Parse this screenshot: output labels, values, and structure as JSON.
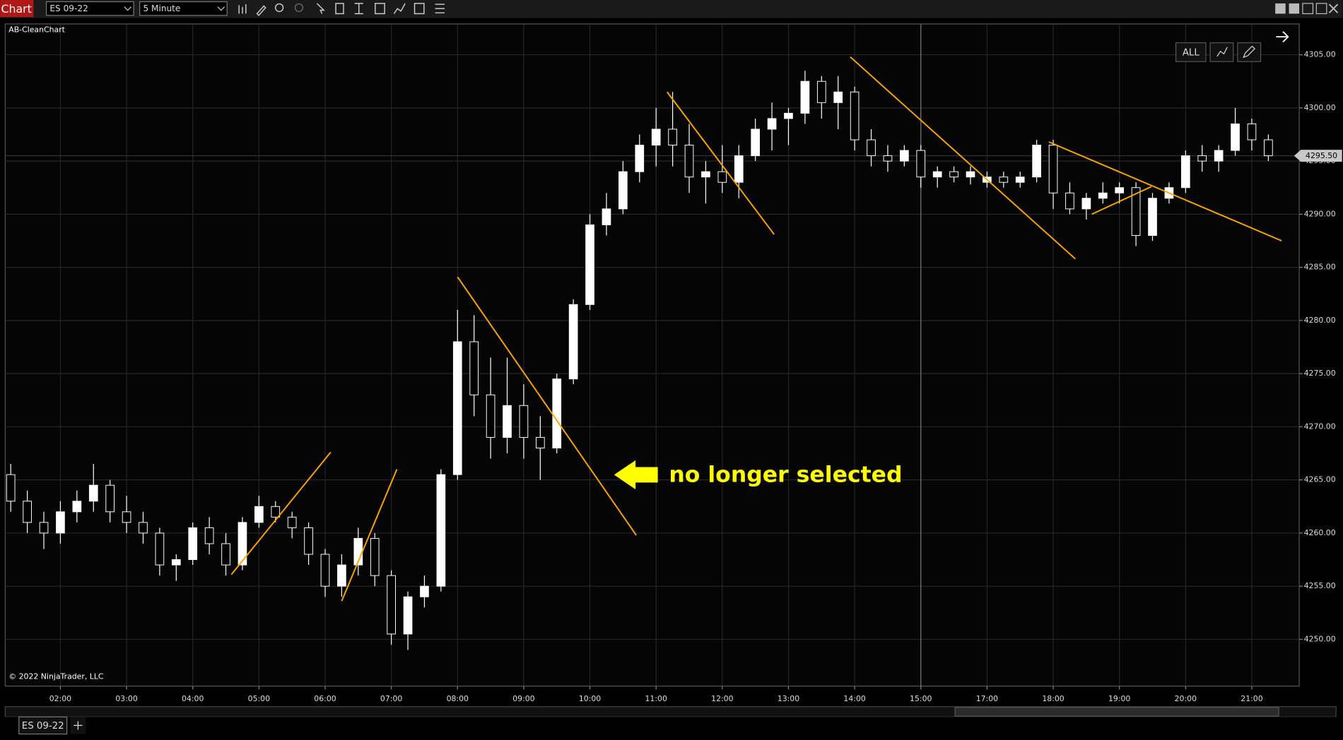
{
  "toolbar": {
    "title": "Chart",
    "instrument": "ES 09-22",
    "interval": "5 Minute"
  },
  "chart_data": {
    "type": "candlestick",
    "title": "AB-CleanChart",
    "copyright": "© 2022 NinjaTrader, LLC",
    "x": [
      "01:15",
      "01:30",
      "01:45",
      "02:00",
      "02:15",
      "02:30",
      "02:45",
      "03:00",
      "03:15",
      "03:30",
      "03:45",
      "04:00",
      "04:15",
      "04:30",
      "04:45",
      "05:00",
      "05:15",
      "05:30",
      "05:45",
      "06:00",
      "06:15",
      "06:30",
      "06:45",
      "07:00",
      "07:15",
      "07:30",
      "07:45",
      "08:00",
      "08:15",
      "08:30",
      "08:45",
      "09:00",
      "09:15",
      "09:30",
      "09:45",
      "10:00",
      "10:15",
      "10:30",
      "10:45",
      "11:00",
      "11:15",
      "11:30",
      "11:45",
      "12:00",
      "12:15",
      "12:30",
      "12:45",
      "13:00",
      "13:15",
      "13:30",
      "13:45",
      "14:00",
      "14:15",
      "14:30",
      "14:45",
      "15:00",
      "15:15",
      "15:30",
      "15:45",
      "17:00",
      "17:15",
      "17:30",
      "17:45",
      "18:00",
      "18:15",
      "18:30",
      "18:45",
      "19:00",
      "19:15",
      "19:30",
      "19:45",
      "20:00",
      "20:15",
      "20:30",
      "20:45",
      "21:00",
      "21:15"
    ],
    "open": [
      4265.5,
      4263,
      4261,
      4260,
      4262,
      4263,
      4264.5,
      4262,
      4261,
      4260,
      4257,
      4257.5,
      4260.5,
      4259,
      4257,
      4261,
      4262.5,
      4261.5,
      4260.5,
      4258,
      4255,
      4257,
      4259.5,
      4256,
      4250.5,
      4254,
      4255,
      4265.5,
      4278,
      4273,
      4269,
      4272,
      4269,
      4268,
      4274.5,
      4281.5,
      4289,
      4290.5,
      4294,
      4296.5,
      4298,
      4296.5,
      4293.5,
      4294,
      4293,
      4295.5,
      4298,
      4299,
      4299.5,
      4302.5,
      4300.5,
      4301.5,
      4297,
      4295.5,
      4295,
      4296,
      4293.5,
      4294,
      4293.5,
      4293,
      4293.5,
      4293,
      4293.5,
      4296.5,
      4292,
      4290.5,
      4291.5,
      4292,
      4292.5,
      4288,
      4291.5,
      4292.5,
      4295.5,
      4295,
      4296,
      4298.5,
      4297
    ],
    "high": [
      4266.5,
      4264,
      4262,
      4263,
      4264,
      4266.5,
      4265,
      4263.5,
      4262,
      4260.5,
      4258,
      4261,
      4261.5,
      4260,
      4261.5,
      4263.5,
      4263,
      4262,
      4261,
      4258.5,
      4258,
      4260.5,
      4260,
      4256.5,
      4254.5,
      4256,
      4266,
      4281,
      4280.5,
      4276.5,
      4276.5,
      4274,
      4271,
      4275,
      4282,
      4290,
      4292,
      4295,
      4297.5,
      4300,
      4301.5,
      4298.5,
      4295,
      4296.5,
      4296.5,
      4299,
      4300.5,
      4300,
      4303.5,
      4303,
      4303,
      4302,
      4298,
      4296.5,
      4296.5,
      4296.5,
      4294.5,
      4294.5,
      4294.5,
      4294,
      4294,
      4294,
      4297,
      4297,
      4293,
      4292,
      4293,
      4293,
      4293,
      4292,
      4293,
      4296,
      4296.5,
      4296.5,
      4300,
      4299,
      4297.5
    ],
    "low": [
      4262,
      4260,
      4258.5,
      4259,
      4261,
      4262,
      4261,
      4260,
      4259,
      4256,
      4255.5,
      4257,
      4258,
      4256,
      4256.5,
      4260.5,
      4261,
      4259.5,
      4257,
      4254,
      4254,
      4256,
      4255,
      4249.5,
      4249,
      4253,
      4254.5,
      4265,
      4271,
      4267,
      4267.5,
      4267,
      4265,
      4267.5,
      4274,
      4281,
      4288,
      4290,
      4293,
      4294.5,
      4294.5,
      4292,
      4291,
      4292,
      4291.5,
      4295,
      4296,
      4296.5,
      4298.5,
      4299,
      4298,
      4296,
      4294.5,
      4294,
      4294.5,
      4292.5,
      4292.5,
      4293,
      4292.8,
      4292.5,
      4292.5,
      4292.5,
      4293,
      4290.5,
      4290,
      4289.5,
      4291,
      4291,
      4287,
      4287.5,
      4291,
      4292,
      4294,
      4294,
      4295.5,
      4296,
      4295
    ],
    "close": [
      4263,
      4261,
      4260,
      4262,
      4263,
      4264.5,
      4262,
      4261,
      4260,
      4257,
      4257.5,
      4260.5,
      4259,
      4257,
      4261,
      4262.5,
      4261.5,
      4260.5,
      4258,
      4255,
      4257,
      4259.5,
      4256,
      4250.5,
      4254,
      4255,
      4265.5,
      4278,
      4273,
      4269,
      4272,
      4269,
      4268,
      4274.5,
      4281.5,
      4289,
      4290.5,
      4294,
      4296.5,
      4298,
      4296.5,
      4293.5,
      4294,
      4293,
      4295.5,
      4298,
      4299,
      4299.5,
      4302.5,
      4300.5,
      4301.5,
      4297,
      4295.5,
      4295,
      4296,
      4293.5,
      4294,
      4293.5,
      4294,
      4293.5,
      4293,
      4293.5,
      4296.5,
      4292,
      4290.5,
      4291.5,
      4292,
      4292.5,
      4288,
      4291.5,
      4292.5,
      4295.5,
      4295,
      4296,
      4298.5,
      4297,
      4295.5
    ],
    "colors": {
      "up": "#ffffff",
      "down": "#000000",
      "wick": "#ffffff"
    },
    "xlim": [
      "01:10",
      "21:43"
    ],
    "xticks": [
      "02:00",
      "03:00",
      "04:00",
      "05:00",
      "06:00",
      "07:00",
      "08:00",
      "09:00",
      "10:00",
      "11:00",
      "12:00",
      "13:00",
      "14:00",
      "15:00",
      "17:00",
      "18:00",
      "19:00",
      "20:00",
      "21:00"
    ],
    "ylim": [
      4245.6,
      4307.9
    ],
    "yticks": [
      {
        "value": 4250,
        "label": "4250.00"
      },
      {
        "value": 4255,
        "label": "4255.00"
      },
      {
        "value": 4260,
        "label": "4260.00"
      },
      {
        "value": 4265,
        "label": "4265.00"
      },
      {
        "value": 4270,
        "label": "4270.00"
      },
      {
        "value": 4275,
        "label": "4275.00"
      },
      {
        "value": 4280,
        "label": "4280.00"
      },
      {
        "value": 4285,
        "label": "4285.00"
      },
      {
        "value": 4290,
        "label": "4290.00"
      },
      {
        "value": 4295,
        "label": "4295.00"
      },
      {
        "value": 4300,
        "label": "4300.00"
      },
      {
        "value": 4305,
        "label": "4305.00"
      }
    ],
    "grid": true,
    "last_price": {
      "value": 4295.5,
      "label": "4295.50"
    },
    "crosshair_x": "15:00",
    "trend_line_color": "#ffa500",
    "trend_lines": [
      {
        "x": [
          "04:35",
          "06:05"
        ],
        "y": [
          4256.1,
          4267.6
        ]
      },
      {
        "x": [
          "06:15",
          "07:05"
        ],
        "y": [
          4253.6,
          4266.0
        ]
      },
      {
        "x": [
          "08:00",
          "10:42"
        ],
        "y": [
          4284.1,
          4259.8
        ]
      },
      {
        "x": [
          "11:10",
          "12:47"
        ],
        "y": [
          4301.5,
          4288.1
        ]
      },
      {
        "x": [
          "13:56",
          "18:20"
        ],
        "y": [
          4304.8,
          4285.8
        ]
      },
      {
        "x": [
          "17:56",
          "21:27"
        ],
        "y": [
          4296.8,
          4287.5
        ]
      },
      {
        "x": [
          "18:35",
          "19:29"
        ],
        "y": [
          4290.0,
          4292.6
        ]
      }
    ],
    "annotation": {
      "text": "no longer selected",
      "color": "#ffff00"
    }
  },
  "buttons": [
    "ALL"
  ],
  "tabs": [
    "ES 09-22"
  ]
}
